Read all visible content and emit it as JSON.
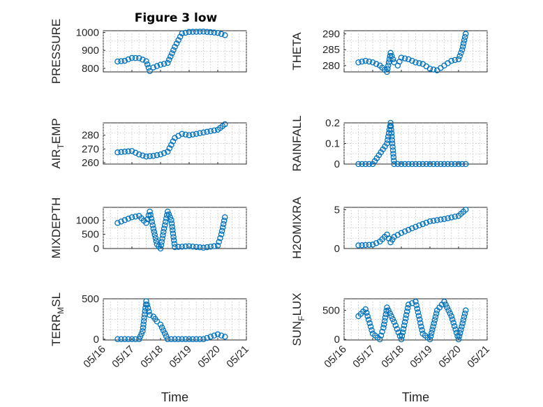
{
  "figure_title": "Figure 3 low",
  "colors": {
    "marker": "#0072BD",
    "axis": "#262626",
    "grid": "#bfbfbf"
  },
  "chart_data": [
    {
      "type": "scatter",
      "ylabel": "PRESSURE",
      "ylim": [
        780,
        1010
      ],
      "yticks": [
        800,
        900,
        1000
      ],
      "xlim": [
        "05/16",
        "05/21"
      ],
      "grid": "on",
      "x": [
        "05/16 12:00",
        "05/16 18:00",
        "05/17 00:00",
        "05/17 06:00",
        "05/17 12:00",
        "05/17 15:00",
        "05/17 18:00",
        "05/18 00:00",
        "05/18 06:00",
        "05/18 12:00",
        "05/18 18:00",
        "05/19 00:00",
        "05/19 12:00",
        "05/20 00:00",
        "05/20 06:00"
      ],
      "values": [
        838,
        842,
        858,
        857,
        840,
        785,
        805,
        820,
        830,
        920,
        995,
        1003,
        1005,
        998,
        985
      ]
    },
    {
      "type": "scatter",
      "ylabel": "THETA",
      "ylim": [
        278,
        291
      ],
      "yticks": [
        280,
        285,
        290
      ],
      "xlim": [
        "05/16",
        "05/21"
      ],
      "grid": "on",
      "x": [
        "05/16 12:00",
        "05/16 18:00",
        "05/17 00:00",
        "05/17 06:00",
        "05/17 12:00",
        "05/17 15:00",
        "05/17 18:00",
        "05/17 21:00",
        "05/18 00:00",
        "05/18 06:00",
        "05/18 12:00",
        "05/18 18:00",
        "05/19 00:00",
        "05/19 06:00",
        "05/19 12:00",
        "05/19 18:00",
        "05/20 00:00",
        "05/20 03:00",
        "05/20 06:00"
      ],
      "values": [
        281,
        281.5,
        281,
        280,
        278,
        284,
        281,
        280,
        282.5,
        282,
        281,
        280.5,
        279,
        278.5,
        280,
        281.5,
        282,
        285,
        290
      ]
    },
    {
      "type": "scatter",
      "ylabel": "AIR_TEMP",
      "ylim": [
        259,
        289
      ],
      "yticks": [
        260,
        270,
        280
      ],
      "xlim": [
        "05/16",
        "05/21"
      ],
      "grid": "on",
      "x": [
        "05/16 12:00",
        "05/16 18:00",
        "05/17 00:00",
        "05/17 06:00",
        "05/17 12:00",
        "05/17 18:00",
        "05/18 00:00",
        "05/18 06:00",
        "05/18 12:00",
        "05/18 18:00",
        "05/19 00:00",
        "05/19 12:00",
        "05/20 00:00",
        "05/20 06:00"
      ],
      "values": [
        267.5,
        268,
        268.5,
        266,
        264.5,
        265,
        266,
        268,
        278,
        281,
        280,
        282,
        284,
        288
      ]
    },
    {
      "type": "scatter",
      "ylabel": "RAINFALL",
      "ylim": [
        0,
        0.2
      ],
      "yticks": [
        0,
        0.1,
        0.2
      ],
      "xlim": [
        "05/16",
        "05/21"
      ],
      "grid": "on",
      "x": [
        "05/16 12:00",
        "05/17 00:00",
        "05/17 12:00",
        "05/17 15:00",
        "05/17 18:00",
        "05/18 00:00",
        "05/18 12:00",
        "05/19 00:00",
        "05/19 12:00",
        "05/20 00:00",
        "05/20 06:00"
      ],
      "values": [
        0,
        0,
        0.1,
        0.2,
        0,
        0,
        0,
        0,
        0,
        0,
        0
      ]
    },
    {
      "type": "scatter",
      "ylabel": "MIXDEPTH",
      "ylim": [
        0,
        1450
      ],
      "yticks": [
        0,
        500,
        1000
      ],
      "xlim": [
        "05/16",
        "05/21"
      ],
      "grid": "on",
      "x": [
        "05/16 12:00",
        "05/16 18:00",
        "05/17 00:00",
        "05/17 06:00",
        "05/17 12:00",
        "05/17 15:00",
        "05/17 18:00",
        "05/17 21:00",
        "05/18 00:00",
        "05/18 03:00",
        "05/18 06:00",
        "05/18 09:00",
        "05/18 12:00",
        "05/19 00:00",
        "05/19 12:00",
        "05/20 00:00",
        "05/20 03:00",
        "05/20 06:00"
      ],
      "values": [
        900,
        1000,
        1100,
        1150,
        900,
        1300,
        700,
        150,
        0,
        700,
        1300,
        1000,
        50,
        80,
        30,
        100,
        500,
        1100
      ]
    },
    {
      "type": "scatter",
      "ylabel": "H2OMIXRA",
      "ylim": [
        0,
        5.3
      ],
      "yticks": [
        0,
        5
      ],
      "xlim": [
        "05/16",
        "05/21"
      ],
      "grid": "on",
      "x": [
        "05/16 12:00",
        "05/17 00:00",
        "05/17 06:00",
        "05/17 12:00",
        "05/17 15:00",
        "05/17 18:00",
        "05/18 00:00",
        "05/18 12:00",
        "05/19 00:00",
        "05/19 12:00",
        "05/20 00:00",
        "05/20 06:00"
      ],
      "values": [
        0.4,
        0.5,
        0.9,
        1.8,
        0.8,
        1.5,
        2,
        2.8,
        3.5,
        3.8,
        4.2,
        5
      ]
    },
    {
      "type": "scatter",
      "ylabel": "TERR_MSL",
      "ylim": [
        -10,
        500
      ],
      "yticks": [
        0,
        500
      ],
      "xlim": [
        "05/16",
        "05/21"
      ],
      "grid": "on",
      "x": [
        "05/16 12:00",
        "05/17 00:00",
        "05/17 06:00",
        "05/17 09:00",
        "05/17 12:00",
        "05/17 15:00",
        "05/17 18:00",
        "05/17 21:00",
        "05/18 00:00",
        "05/18 06:00",
        "05/18 12:00",
        "05/19 00:00",
        "05/19 12:00",
        "05/20 00:00",
        "05/20 06:00"
      ],
      "values": [
        0,
        0,
        0,
        100,
        470,
        300,
        280,
        220,
        180,
        0,
        0,
        0,
        0,
        60,
        30
      ]
    },
    {
      "type": "scatter",
      "ylabel": "SUN_FLUX",
      "ylim": [
        -10,
        700
      ],
      "yticks": [
        0,
        500
      ],
      "xlim": [
        "05/16",
        "05/21"
      ],
      "grid": "on",
      "x": [
        "05/16 12:00",
        "05/16 18:00",
        "05/17 00:00",
        "05/17 06:00",
        "05/17 09:00",
        "05/17 12:00",
        "05/17 18:00",
        "05/18 00:00",
        "05/18 06:00",
        "05/18 12:00",
        "05/18 18:00",
        "05/19 00:00",
        "05/19 06:00",
        "05/19 12:00",
        "05/19 18:00",
        "05/20 00:00",
        "05/20 06:00"
      ],
      "values": [
        400,
        520,
        100,
        0,
        200,
        550,
        300,
        0,
        600,
        650,
        100,
        0,
        500,
        650,
        400,
        0,
        500
      ]
    }
  ],
  "xlabel": "Time",
  "xtick_labels": [
    "05/16",
    "05/17",
    "05/18",
    "05/19",
    "05/20",
    "05/21"
  ]
}
